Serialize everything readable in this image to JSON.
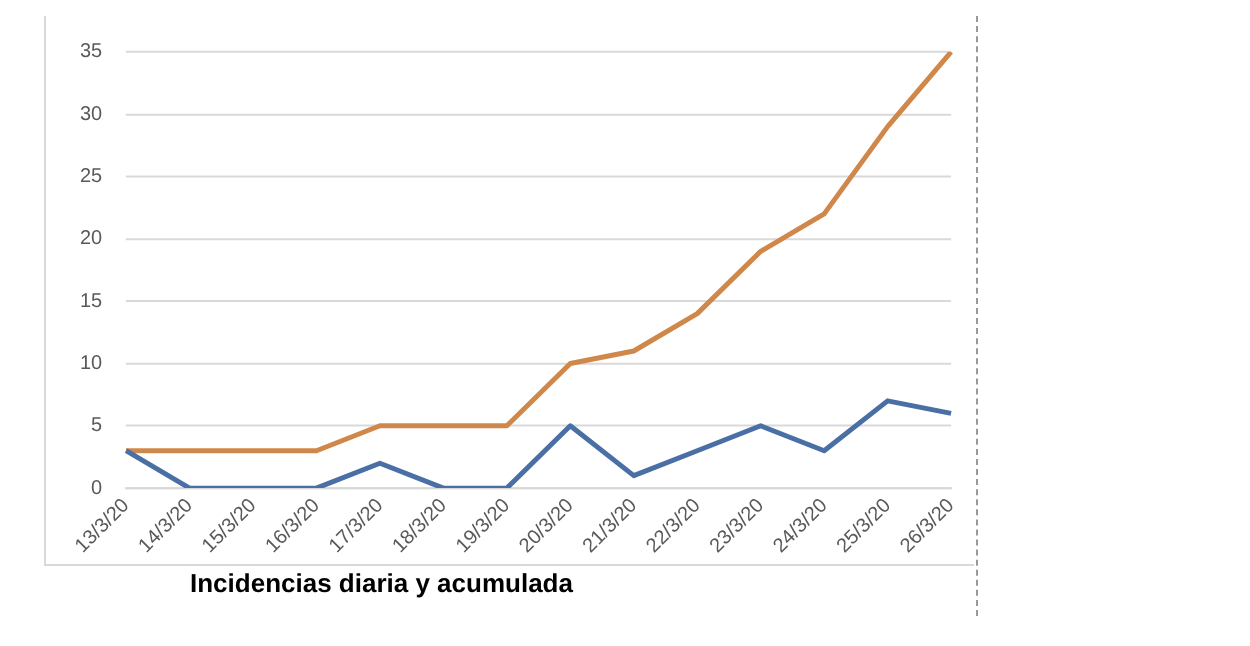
{
  "chart_data": {
    "type": "line",
    "title": "Incidencias diaria y acumulada",
    "categories": [
      "13/3/20",
      "14/3/20",
      "15/3/20",
      "16/3/20",
      "17/3/20",
      "18/3/20",
      "19/3/20",
      "20/3/20",
      "21/3/20",
      "22/3/20",
      "23/3/20",
      "24/3/20",
      "25/3/20",
      "26/3/20"
    ],
    "series": [
      {
        "color": "#4a6fa5",
        "values": [
          3,
          0,
          0,
          0,
          2,
          0,
          0,
          5,
          1,
          3,
          5,
          3,
          7,
          6
        ]
      },
      {
        "color": "#d0884a",
        "values": [
          3,
          3,
          3,
          3,
          5,
          5,
          5,
          10,
          11,
          14,
          19,
          22,
          29,
          35
        ]
      }
    ],
    "ylim": [
      0,
      35
    ],
    "yticks": [
      0,
      5,
      10,
      15,
      20,
      25,
      30,
      35
    ],
    "grid": "y",
    "marker": "none",
    "line_style": "solid"
  }
}
